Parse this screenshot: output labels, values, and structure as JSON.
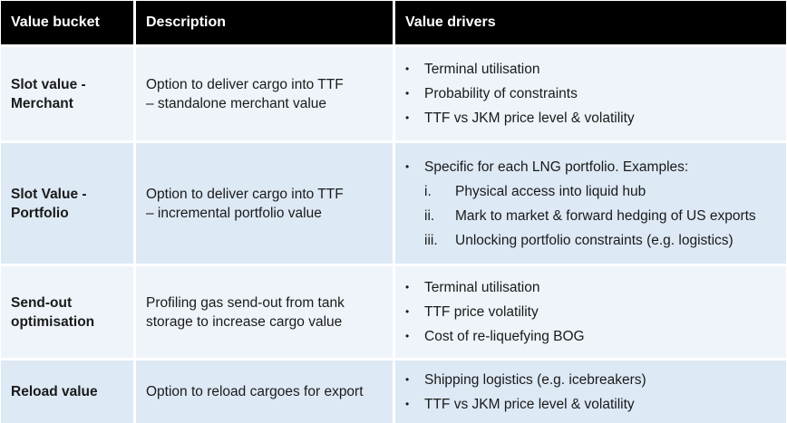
{
  "headers": {
    "bucket": "Value bucket",
    "description": "Description",
    "drivers": "Value drivers"
  },
  "rows": [
    {
      "bucket": [
        "Slot value -",
        "Merchant"
      ],
      "description": [
        "Option to deliver cargo into TTF",
        "– standalone merchant value"
      ],
      "drivers": [
        "Terminal utilisation",
        "Probability of constraints",
        "TTF vs JKM price level & volatility"
      ]
    },
    {
      "bucket": [
        "Slot Value -",
        "Portfolio"
      ],
      "description": [
        "Option to deliver cargo into TTF",
        "– incremental portfolio value"
      ],
      "drivers": [
        "Specific for each LNG portfolio. Examples:"
      ],
      "sub_items": [
        {
          "num": "i.",
          "text": "Physical access into liquid hub"
        },
        {
          "num": "ii.",
          "text": "Mark to market & forward hedging of US exports"
        },
        {
          "num": "iii.",
          "text": "Unlocking portfolio constraints (e.g. logistics)"
        }
      ]
    },
    {
      "bucket": [
        "Send-out",
        "optimisation"
      ],
      "description": [
        "Profiling gas send-out from tank",
        "storage to increase cargo value"
      ],
      "drivers": [
        "Terminal utilisation",
        "TTF price volatility",
        "Cost of re-liquefying BOG"
      ]
    },
    {
      "bucket": [
        "Reload value"
      ],
      "description": [
        "Option to reload cargoes for export"
      ],
      "drivers": [
        "Shipping logistics (e.g. icebreakers)",
        "TTF vs JKM price level & volatility"
      ]
    }
  ],
  "colors": {
    "header_bg": "#000000",
    "header_text": "#ffffff",
    "row_light": "#eef4fa",
    "row_dark": "#dde9f5"
  }
}
